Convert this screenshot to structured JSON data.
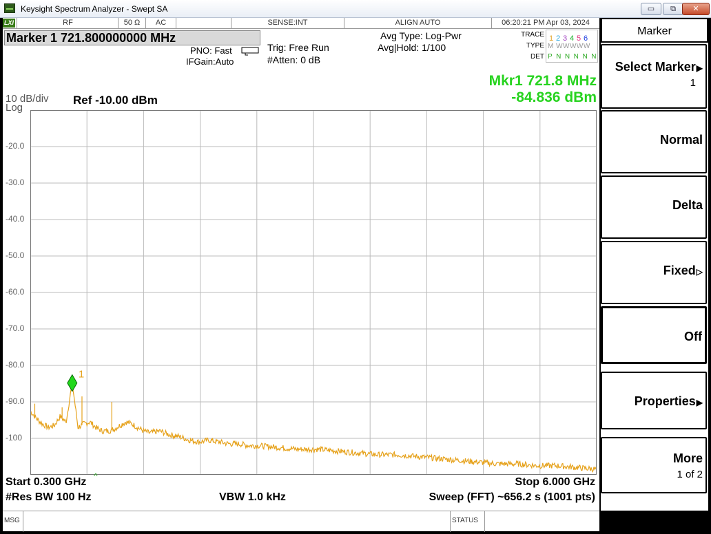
{
  "window": {
    "title": "Keysight Spectrum Analyzer - Swept SA",
    "btn_min": "▭",
    "btn_max": "⧉",
    "btn_close": "✕"
  },
  "status_bar": {
    "lxi": "LXI",
    "rf": "RF",
    "impedance": "50 Ω",
    "coupling": "AC",
    "sense": "SENSE:INT",
    "align": "ALIGN AUTO",
    "datetime": "06:20:21 PM Apr 03, 2024"
  },
  "marker_header": "Marker 1 721.800000000 MHz",
  "settings": {
    "pno": "PNO: Fast",
    "ifgain": "IFGain:Auto",
    "trig": "Trig: Free Run",
    "atten": "#Atten: 0 dB",
    "avg_type": "Avg Type: Log-Pwr",
    "avg_hold": "Avg|Hold: 1/100"
  },
  "trace_info": {
    "trace_label": "TRACE",
    "type_label": "TYPE",
    "det_label": "DET",
    "numbers": [
      "1",
      "2",
      "3",
      "4",
      "5",
      "6"
    ],
    "number_colors": [
      "#e0a020",
      "#2aa6e0",
      "#a040c0",
      "#20b030",
      "#e03080",
      "#2040e0"
    ],
    "type_values": "M WWWWW",
    "det_values": "P N N N N N"
  },
  "marker_readout": {
    "freq": "Mkr1 721.8 MHz",
    "level": "-84.836 dBm"
  },
  "scale": {
    "per_div": "10 dB/div",
    "log": "Log",
    "ref": "Ref -10.00 dBm"
  },
  "chart_data": {
    "type": "line",
    "x_start_ghz": 0.3,
    "x_stop_ghz": 6.0,
    "ylim": [
      -110,
      -10
    ],
    "y_tick_labels": [
      "-20.0",
      "-30.0",
      "-40.0",
      "-50.0",
      "-60.0",
      "-70.0",
      "-80.0",
      "-90.0",
      "-100"
    ],
    "trace_color": "#e6a21c",
    "marker_label": "1",
    "marker_x_ghz": 0.7218,
    "marker_y_dbm": -84.836,
    "series": [
      {
        "x": [
          0.3,
          0.36,
          0.42,
          0.48,
          0.54,
          0.6,
          0.66,
          0.7218,
          0.78,
          0.84,
          0.9,
          0.96,
          1.02,
          1.08,
          1.14,
          1.2,
          1.26,
          1.32,
          1.38,
          1.44,
          1.5,
          1.6,
          1.7,
          1.8,
          1.9,
          2.0,
          2.1,
          2.2,
          2.3,
          2.4,
          2.5,
          2.6,
          2.8,
          3.0,
          3.2,
          3.4,
          3.6,
          3.8,
          4.0,
          4.2,
          4.4,
          4.6,
          4.8,
          5.0,
          5.2,
          5.4,
          5.6,
          5.8,
          6.0
        ],
        "y": [
          -92.5,
          -94.5,
          -96.0,
          -97.0,
          -96.5,
          -94.0,
          -95.5,
          -84.8,
          -97.0,
          -96.0,
          -95.5,
          -97.0,
          -98.0,
          -98.0,
          -97.5,
          -96.5,
          -95.5,
          -96.0,
          -97.0,
          -98.0,
          -98.5,
          -98.0,
          -99.0,
          -99.5,
          -100.5,
          -101.0,
          -100.5,
          -101.0,
          -101.5,
          -101.5,
          -102.0,
          -102.0,
          -102.5,
          -103.0,
          -103.0,
          -103.5,
          -104.0,
          -104.5,
          -104.5,
          -105.0,
          -105.5,
          -106.0,
          -106.5,
          -107.0,
          -107.0,
          -107.5,
          -107.5,
          -108.0,
          -108.5
        ]
      }
    ]
  },
  "bottom": {
    "start": "Start 0.300 GHz",
    "stop": "Stop 6.000 GHz",
    "rbw": "#Res BW 100 Hz",
    "vbw": "VBW 1.0 kHz",
    "sweep": "Sweep (FFT)  ~656.2 s (1001 pts)"
  },
  "message_bar": {
    "msg": "MSG",
    "status": "STATUS"
  },
  "softkeys": {
    "menu_title": "Marker",
    "select_marker": "Select Marker",
    "select_marker_value": "1",
    "normal": "Normal",
    "delta": "Delta",
    "fixed": "Fixed",
    "off": "Off",
    "properties": "Properties",
    "more": "More",
    "more_page": "1 of 2"
  }
}
